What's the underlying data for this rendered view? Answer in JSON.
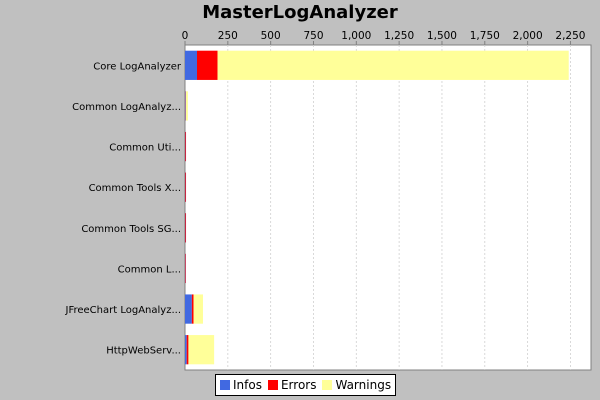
{
  "chart_data": {
    "type": "bar",
    "orientation": "horizontal",
    "stacked": true,
    "title": "MasterLogAnalyzer",
    "xlabel": "",
    "ylabel": "",
    "xlim": [
      0,
      2370
    ],
    "ticks": [
      {
        "value": 0,
        "label": "0"
      },
      {
        "value": 250,
        "label": "250"
      },
      {
        "value": 500,
        "label": "500"
      },
      {
        "value": 750,
        "label": "750"
      },
      {
        "value": 1000,
        "label": "1,000"
      },
      {
        "value": 1250,
        "label": "1,250"
      },
      {
        "value": 1500,
        "label": "1,500"
      },
      {
        "value": 1750,
        "label": "1,750"
      },
      {
        "value": 2000,
        "label": "2,000"
      },
      {
        "value": 2250,
        "label": "2,250"
      }
    ],
    "axis_position": "top",
    "grid": true,
    "legend_position": "bottom",
    "categories": [
      "Core LogAnalyzer",
      "Common LogAnalyz...",
      "Common Uti...",
      "Common Tools X...",
      "Common Tools SG...",
      "Common L...",
      "JFreeChart LogAnalyz...",
      "HttpWebServ..."
    ],
    "series": [
      {
        "name": "Infos",
        "color": "#4169e1",
        "values": [
          70,
          3,
          2,
          2,
          2,
          2,
          40,
          10
        ]
      },
      {
        "name": "Errors",
        "color": "#ff0000",
        "values": [
          120,
          2,
          4,
          4,
          4,
          3,
          10,
          10
        ]
      },
      {
        "name": "Warnings",
        "color": "#ffff99",
        "values": [
          2050,
          12,
          0,
          0,
          0,
          0,
          55,
          150
        ]
      }
    ]
  }
}
